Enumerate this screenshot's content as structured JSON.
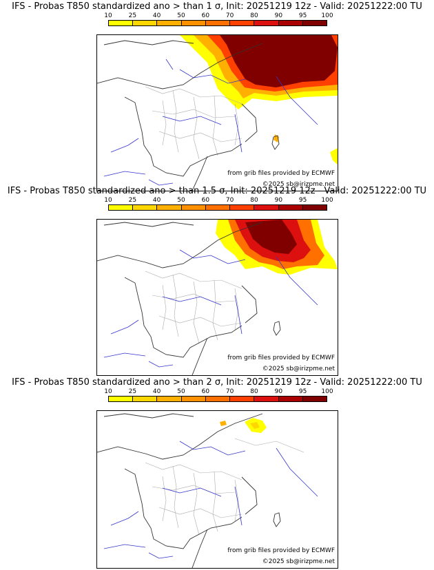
{
  "colorbar": {
    "labels": [
      "10",
      "25",
      "40",
      "50",
      "60",
      "70",
      "80",
      "90",
      "95",
      "100"
    ],
    "colors": [
      "#ffff00",
      "#ffd700",
      "#ffb000",
      "#ff9000",
      "#ff7000",
      "#ff4000",
      "#dd1010",
      "#aa0000",
      "#800000"
    ]
  },
  "panels": [
    {
      "title": "IFS - Probas T850  standardized ano > than 1 σ, Init: 20251219 12z - Valid: 20251222:00 TU",
      "credit_source": "from grib files provided by ECMWF",
      "credit_copyright": "©2025 sb@irizpme.net"
    },
    {
      "title": "IFS - Probas T850  standardized ano > than 1.5 σ, Init: 20251219 12z - Valid: 20251222:00 TU",
      "credit_source": "from grib files provided by ECMWF",
      "credit_copyright": "©2025 sb@irizpme.net"
    },
    {
      "title": "IFS - Probas T850  standardized ano > than 2 σ, Init: 20251219 12z - Valid: 20251222:00 TU",
      "credit_source": "from grib files provided by ECMWF",
      "credit_copyright": "©2025 sb@irizpme.net"
    }
  ]
}
